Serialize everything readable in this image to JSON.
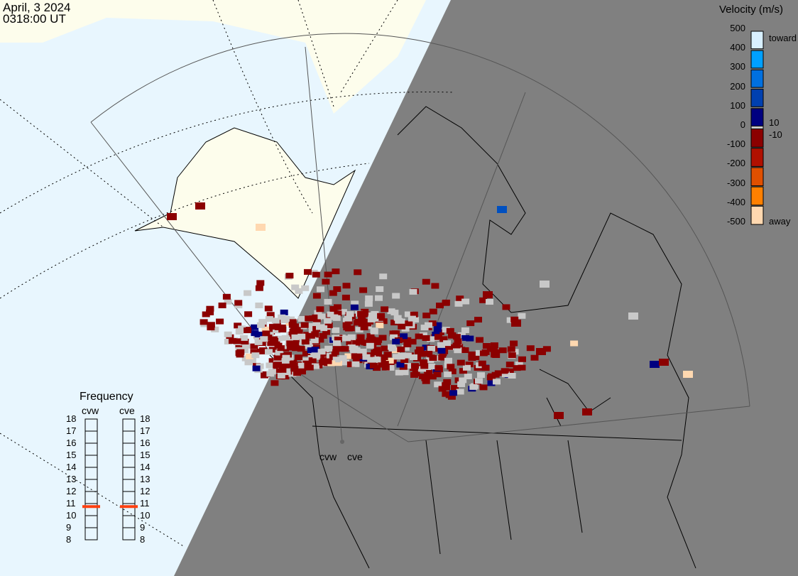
{
  "header": {
    "date": "April, 3 2024",
    "time": "0318:00 UT"
  },
  "velocity_legend": {
    "title": "Velocity (m/s)",
    "ticks": [
      "500",
      "400",
      "300",
      "200",
      "100",
      "0",
      "-100",
      "-200",
      "-300",
      "-400",
      "-500"
    ],
    "toward_label": "toward",
    "away_label": "away",
    "threshold_pos": "10",
    "threshold_neg": "-10",
    "colors": [
      "#d8f0ff",
      "#00a0ff",
      "#0070e0",
      "#0040b0",
      "#000080",
      "#c8c8c8",
      "#8b0000",
      "#b01000",
      "#e05000",
      "#ff8000",
      "#ffd8b0"
    ]
  },
  "frequency": {
    "title": "Frequency",
    "unit_range": [
      8,
      18
    ],
    "ticks": [
      "18",
      "17",
      "16",
      "15",
      "14",
      "13",
      "12",
      "11",
      "10",
      "9",
      "8"
    ],
    "sites": [
      {
        "name": "cvw",
        "value_mhz": 10.75
      },
      {
        "name": "cve",
        "value_mhz": 10.75
      }
    ],
    "marker_color": "#ff4010"
  },
  "map": {
    "ocean_color": "#e8f6fe",
    "land_color": "#fdfdec",
    "night_color": "#808080",
    "radar_sites": [
      "cvw",
      "cve"
    ],
    "ground_scatter_color": "#c8c8c8"
  }
}
